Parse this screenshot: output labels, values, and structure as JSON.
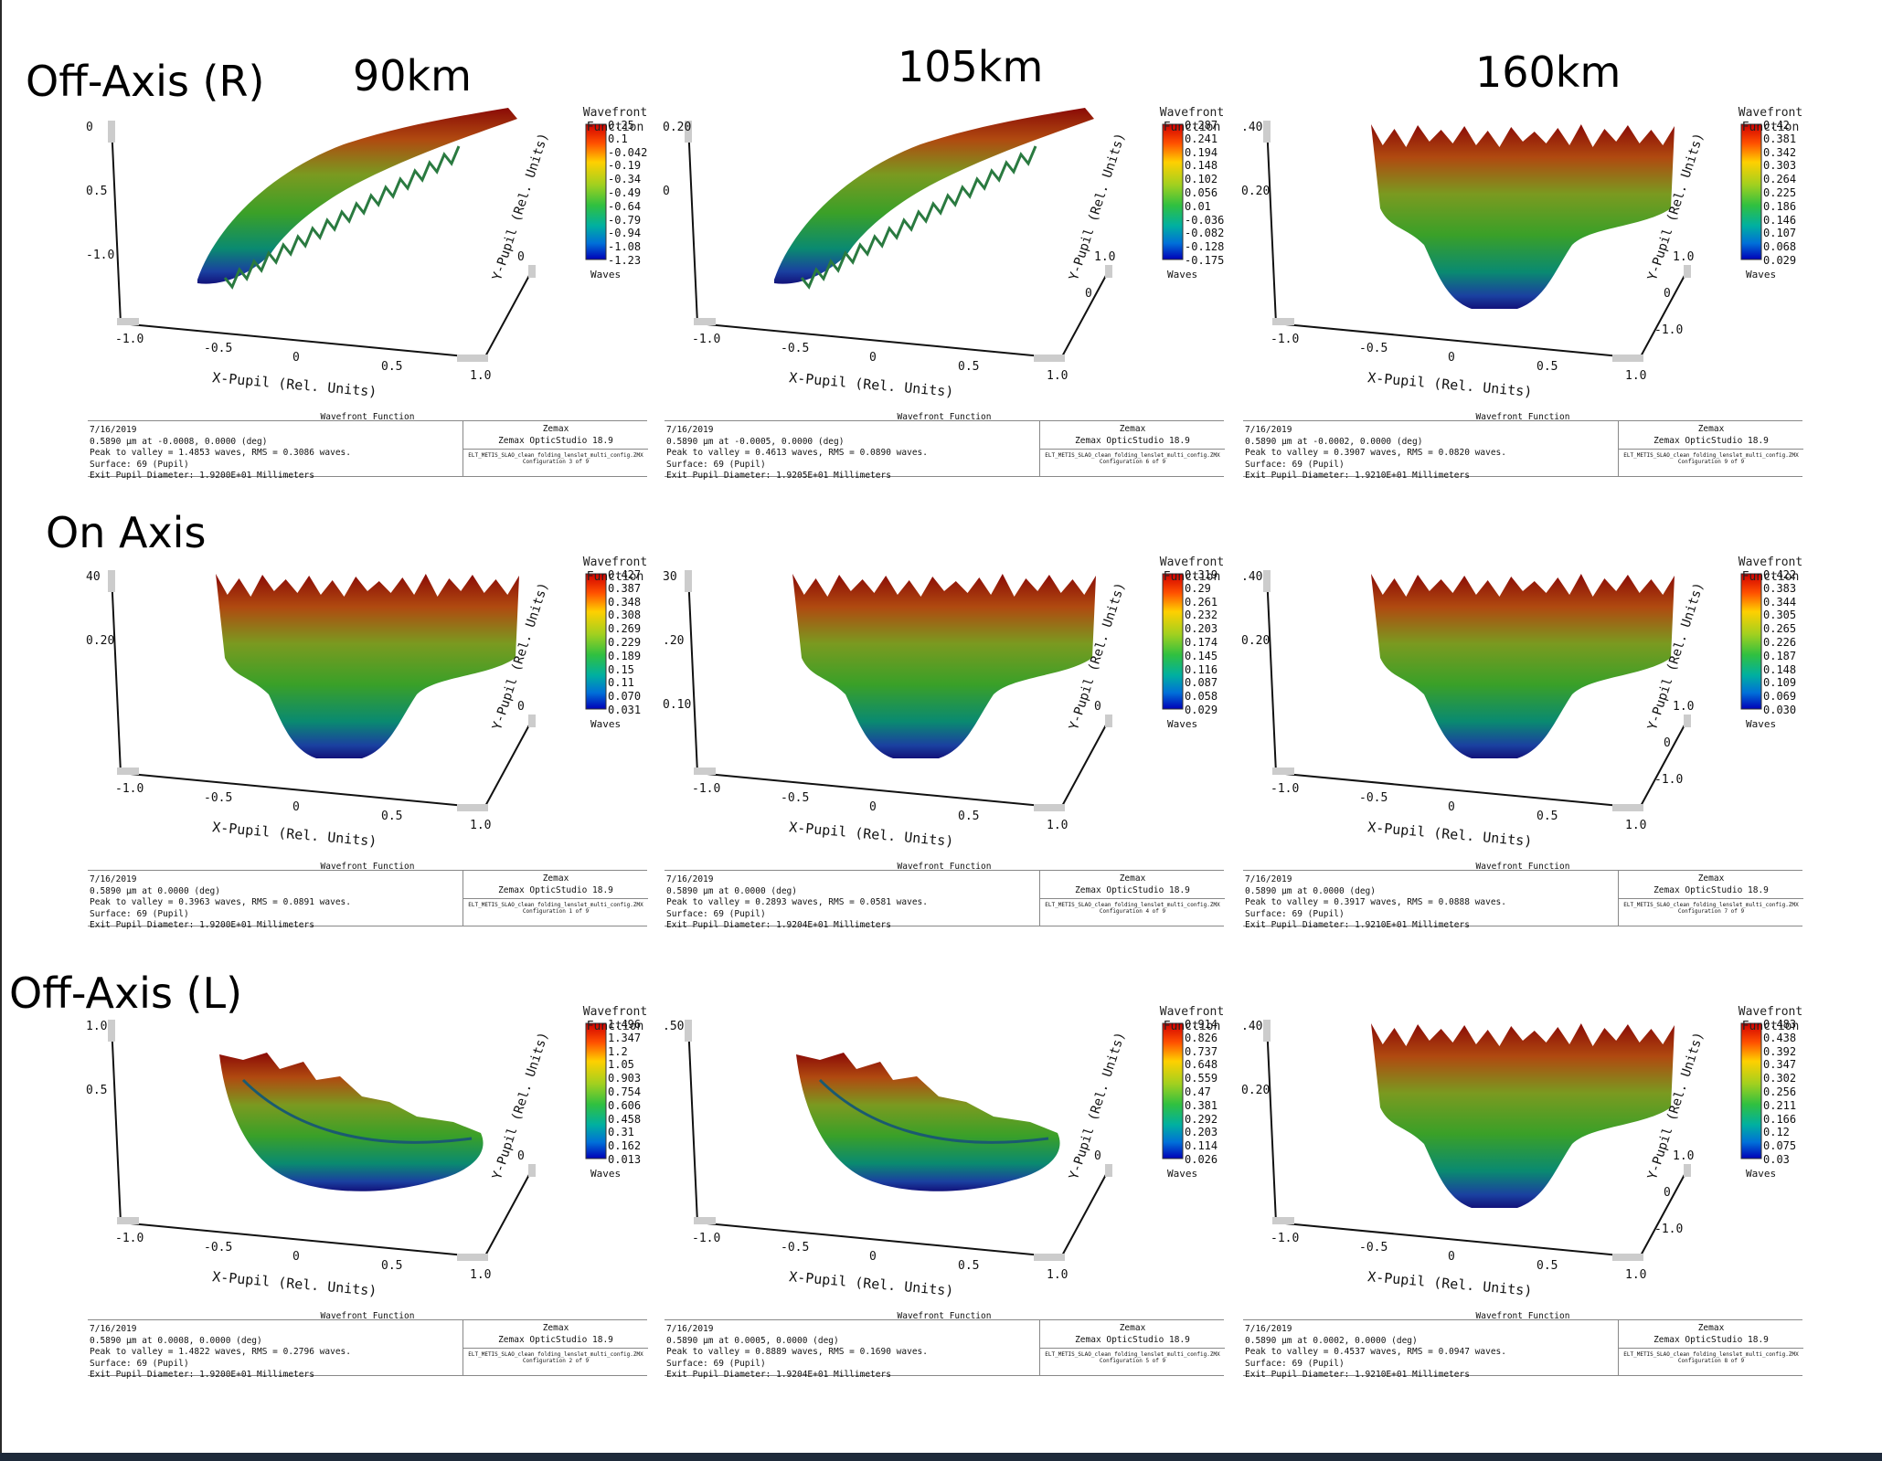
{
  "row_labels": [
    "Off-Axis (R)",
    "On Axis",
    "Off-Axis (L)"
  ],
  "column_labels": [
    "90km",
    "105km",
    "160km"
  ],
  "axis_labels": {
    "x": "X-Pupil (Rel. Units)",
    "y": "Y-Pupil (Rel. Units)",
    "colorbar_title_1": "Wavefront",
    "colorbar_title_2": "Function",
    "colorbar_units": "Waves",
    "panel_header": "Wavefront Function"
  },
  "footer_common": {
    "date": "7/16/2019",
    "software_1": "Zemax",
    "software_2": "Zemax OpticStudio 18.9",
    "surface": "Surface: 69 (Pupil)",
    "file": "ELT_METIS_SLAO_clean_folding_lenslet_multi_config.ZMX"
  },
  "colors": {
    "colormap": [
      "#0000c8",
      "#0060d0",
      "#00b0a0",
      "#40c040",
      "#c0d020",
      "#ffd000",
      "#ff6000",
      "#d00000"
    ],
    "surface_top": "#8b0000",
    "surface_bottom": "#1a1a8c"
  },
  "chart_data": [
    {
      "type": "surface",
      "row": "Off-Axis (R)",
      "column": "90km",
      "shape": "tilt-right",
      "colorbar": [
        "0.25",
        "0.1",
        "-0.042",
        "-0.19",
        "-0.34",
        "-0.49",
        "-0.64",
        "-0.79",
        "-0.94",
        "-1.08",
        "-1.23"
      ],
      "z_ticks": [
        "0",
        "0.5",
        "-1.0"
      ],
      "x_ticks": [
        "-1.0",
        "-0.5",
        "0",
        "0.5",
        "1.0"
      ],
      "y_ticks": [
        "0"
      ],
      "wavelength_line": "0.5890 µm at -0.0008, 0.0000 (deg)",
      "peak_line": "Peak to valley = 1.4853 waves, RMS = 0.3086 waves.",
      "exit_pupil": "Exit Pupil Diameter: 1.9200E+01 Millimeters",
      "config": "Configuration 3 of 9"
    },
    {
      "type": "surface",
      "row": "Off-Axis (R)",
      "column": "105km",
      "shape": "tilt-right",
      "colorbar": [
        "0.287",
        "0.241",
        "0.194",
        "0.148",
        "0.102",
        "0.056",
        "0.01",
        "-0.036",
        "-0.082",
        "-0.128",
        "-0.175"
      ],
      "z_ticks": [
        "0.20",
        "0"
      ],
      "x_ticks": [
        "-1.0",
        "-0.5",
        "0",
        "0.5",
        "1.0"
      ],
      "y_ticks": [
        "1.0",
        "0"
      ],
      "wavelength_line": "0.5890 µm at -0.0005, 0.0000 (deg)",
      "peak_line": "Peak to valley = 0.4613 waves, RMS = 0.0890 waves.",
      "exit_pupil": "Exit Pupil Diameter: 1.9205E+01 Millimeters",
      "config": "Configuration 6 of 9"
    },
    {
      "type": "surface",
      "row": "Off-Axis (R)",
      "column": "160km",
      "shape": "bowl",
      "colorbar": [
        "0.42",
        "0.381",
        "0.342",
        "0.303",
        "0.264",
        "0.225",
        "0.186",
        "0.146",
        "0.107",
        "0.068",
        "0.029"
      ],
      "z_ticks": [
        ".40",
        "0.20"
      ],
      "x_ticks": [
        "-1.0",
        "-0.5",
        "0",
        "0.5",
        "1.0"
      ],
      "y_ticks": [
        "1.0",
        "0",
        "-1.0"
      ],
      "wavelength_line": "0.5890 µm at -0.0002, 0.0000 (deg)",
      "peak_line": "Peak to valley = 0.3907 waves, RMS = 0.0820 waves.",
      "exit_pupil": "Exit Pupil Diameter: 1.9210E+01 Millimeters",
      "config": "Configuration 9 of 9"
    },
    {
      "type": "surface",
      "row": "On Axis",
      "column": "90km",
      "shape": "bowl",
      "colorbar": [
        "0.427",
        "0.387",
        "0.348",
        "0.308",
        "0.269",
        "0.229",
        "0.189",
        "0.15",
        "0.11",
        "0.070",
        "0.031"
      ],
      "z_ticks": [
        "40",
        "0.20"
      ],
      "x_ticks": [
        "-1.0",
        "-0.5",
        "0",
        "0.5",
        "1.0"
      ],
      "y_ticks": [
        "0"
      ],
      "wavelength_line": "0.5890 µm at 0.0000 (deg)",
      "peak_line": "Peak to valley = 0.3963 waves, RMS = 0.0891 waves.",
      "exit_pupil": "Exit Pupil Diameter: 1.9200E+01 Millimeters",
      "config": "Configuration 1 of 9"
    },
    {
      "type": "surface",
      "row": "On Axis",
      "column": "105km",
      "shape": "bowl",
      "colorbar": [
        "0.319",
        "0.29",
        "0.261",
        "0.232",
        "0.203",
        "0.174",
        "0.145",
        "0.116",
        "0.087",
        "0.058",
        "0.029"
      ],
      "z_ticks": [
        "30",
        ".20",
        "0.10"
      ],
      "x_ticks": [
        "-1.0",
        "-0.5",
        "0",
        "0.5",
        "1.0"
      ],
      "y_ticks": [
        "0"
      ],
      "wavelength_line": "0.5890 µm at 0.0000 (deg)",
      "peak_line": "Peak to valley = 0.2893 waves, RMS = 0.0581 waves.",
      "exit_pupil": "Exit Pupil Diameter: 1.9204E+01 Millimeters",
      "config": "Configuration 4 of 9"
    },
    {
      "type": "surface",
      "row": "On Axis",
      "column": "160km",
      "shape": "bowl",
      "colorbar": [
        "0.422",
        "0.383",
        "0.344",
        "0.305",
        "0.265",
        "0.226",
        "0.187",
        "0.148",
        "0.109",
        "0.069",
        "0.030"
      ],
      "z_ticks": [
        ".40",
        "0.20"
      ],
      "x_ticks": [
        "-1.0",
        "-0.5",
        "0",
        "0.5",
        "1.0"
      ],
      "y_ticks": [
        "1.0",
        "0",
        "-1.0"
      ],
      "wavelength_line": "0.5890 µm at 0.0000 (deg)",
      "peak_line": "Peak to valley = 0.3917 waves, RMS = 0.0888 waves.",
      "exit_pupil": "Exit Pupil Diameter: 1.9210E+01 Millimeters",
      "config": "Configuration 7 of 9"
    },
    {
      "type": "surface",
      "row": "Off-Axis (L)",
      "column": "90km",
      "shape": "tilt-left",
      "colorbar": [
        "1.496",
        "1.347",
        "1.2",
        "1.05",
        "0.903",
        "0.754",
        "0.606",
        "0.458",
        "0.31",
        "0.162",
        "0.013"
      ],
      "z_ticks": [
        "1.0",
        "0.5"
      ],
      "x_ticks": [
        "-1.0",
        "-0.5",
        "0",
        "0.5",
        "1.0"
      ],
      "y_ticks": [
        "0"
      ],
      "wavelength_line": "0.5890 µm at 0.0008, 0.0000 (deg)",
      "peak_line": "Peak to valley = 1.4822 waves, RMS = 0.2796 waves.",
      "exit_pupil": "Exit Pupil Diameter: 1.9200E+01 Millimeters",
      "config": "Configuration 2 of 9"
    },
    {
      "type": "surface",
      "row": "Off-Axis (L)",
      "column": "105km",
      "shape": "tilt-left",
      "colorbar": [
        "0.914",
        "0.826",
        "0.737",
        "0.648",
        "0.559",
        "0.47",
        "0.381",
        "0.292",
        "0.203",
        "0.114",
        "0.026"
      ],
      "z_ticks": [
        ".50"
      ],
      "x_ticks": [
        "-1.0",
        "-0.5",
        "0",
        "0.5",
        "1.0"
      ],
      "y_ticks": [
        "0"
      ],
      "wavelength_line": "0.5890 µm at 0.0005, 0.0000 (deg)",
      "peak_line": "Peak to valley = 0.8889 waves, RMS = 0.1690 waves.",
      "exit_pupil": "Exit Pupil Diameter: 1.9204E+01 Millimeters",
      "config": "Configuration 5 of 9"
    },
    {
      "type": "surface",
      "row": "Off-Axis (L)",
      "column": "160km",
      "shape": "bowl",
      "colorbar": [
        "0.483",
        "0.438",
        "0.392",
        "0.347",
        "0.302",
        "0.256",
        "0.211",
        "0.166",
        "0.12",
        "0.075",
        "0.03"
      ],
      "z_ticks": [
        ".40",
        "0.20"
      ],
      "x_ticks": [
        "-1.0",
        "-0.5",
        "0",
        "0.5",
        "1.0"
      ],
      "y_ticks": [
        "1.0",
        "0",
        "-1.0"
      ],
      "wavelength_line": "0.5890 µm at 0.0002, 0.0000 (deg)",
      "peak_line": "Peak to valley = 0.4537 waves, RMS = 0.0947 waves.",
      "exit_pupil": "Exit Pupil Diameter: 1.9210E+01 Millimeters",
      "config": "Configuration 8 of 9"
    }
  ]
}
